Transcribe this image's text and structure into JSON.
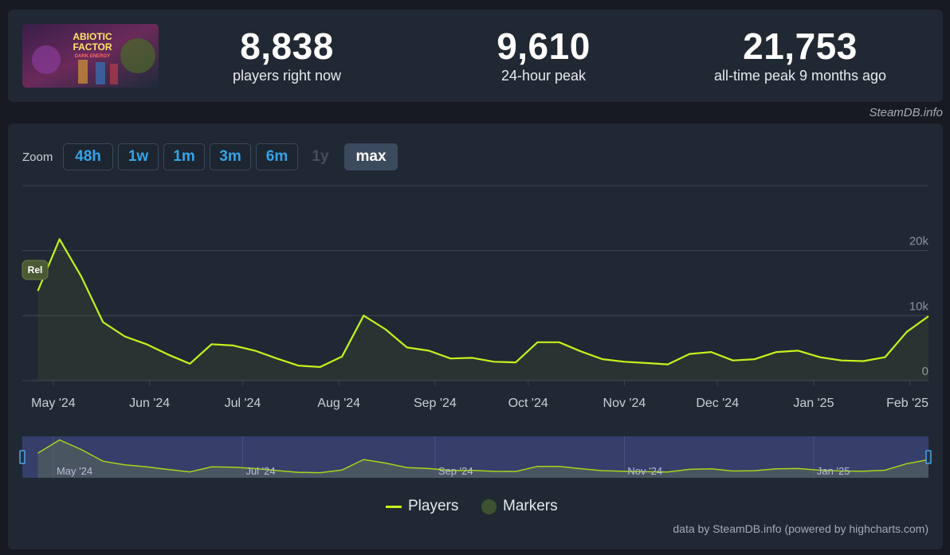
{
  "stats": {
    "current": {
      "value": "8,838",
      "label": "players right now"
    },
    "peak24": {
      "value": "9,610",
      "label": "24-hour peak"
    },
    "alltime": {
      "value": "21,753",
      "label": "all-time peak 9 months ago"
    }
  },
  "thumb": {
    "title_line1": "ABIOTIC",
    "title_line2": "FACTOR",
    "subtitle": "DARK ENERGY"
  },
  "source_credit": "SteamDB.info",
  "zoom": {
    "label": "Zoom",
    "buttons": [
      {
        "label": "48h",
        "state": "normal"
      },
      {
        "label": "1w",
        "state": "normal"
      },
      {
        "label": "1m",
        "state": "normal"
      },
      {
        "label": "3m",
        "state": "normal"
      },
      {
        "label": "6m",
        "state": "normal"
      },
      {
        "label": "1y",
        "state": "disabled"
      },
      {
        "label": "max",
        "state": "active"
      }
    ]
  },
  "chart_data": {
    "type": "line",
    "title": "",
    "xlabel": "",
    "ylabel": "",
    "ylim": [
      0,
      30000
    ],
    "y_ticks": [
      0,
      10000,
      20000
    ],
    "y_tick_labels": [
      "0",
      "10k",
      "20k"
    ],
    "x_tick_labels": [
      "May '24",
      "Jun '24",
      "Jul '24",
      "Aug '24",
      "Sep '24",
      "Oct '24",
      "Nov '24",
      "Dec '24",
      "Jan '25",
      "Feb '25"
    ],
    "navigator_labels": [
      "May '24",
      "Jul '24",
      "Sep '24",
      "Nov '24",
      "Jan '25"
    ],
    "grid": true,
    "color": "#c4f21c",
    "marker_label": "Rel",
    "series": [
      {
        "name": "Players",
        "x": [
          "2024-04-26",
          "2024-05-03",
          "2024-05-10",
          "2024-05-17",
          "2024-05-24",
          "2024-05-31",
          "2024-06-07",
          "2024-06-14",
          "2024-06-21",
          "2024-06-28",
          "2024-07-05",
          "2024-07-12",
          "2024-07-19",
          "2024-07-26",
          "2024-08-02",
          "2024-08-09",
          "2024-08-16",
          "2024-08-23",
          "2024-08-30",
          "2024-09-06",
          "2024-09-13",
          "2024-09-20",
          "2024-09-27",
          "2024-10-04",
          "2024-10-11",
          "2024-10-18",
          "2024-10-25",
          "2024-11-01",
          "2024-11-08",
          "2024-11-15",
          "2024-11-22",
          "2024-11-29",
          "2024-12-06",
          "2024-12-13",
          "2024-12-20",
          "2024-12-27",
          "2025-01-03",
          "2025-01-10",
          "2025-01-17",
          "2025-01-24",
          "2025-01-31",
          "2025-02-07"
        ],
        "values": [
          13800,
          21750,
          16000,
          9000,
          6800,
          5600,
          4000,
          2600,
          5600,
          5400,
          4600,
          3400,
          2300,
          2100,
          3700,
          10000,
          7900,
          5100,
          4600,
          3400,
          3500,
          2900,
          2800,
          5900,
          5900,
          4500,
          3300,
          2900,
          2700,
          2500,
          4100,
          4400,
          3100,
          3300,
          4400,
          4600,
          3600,
          3100,
          3000,
          3600,
          7500,
          9900
        ]
      }
    ]
  },
  "legend": {
    "players": "Players",
    "markers": "Markers"
  },
  "footer_credit": "data by SteamDB.info (powered by highcharts.com)"
}
